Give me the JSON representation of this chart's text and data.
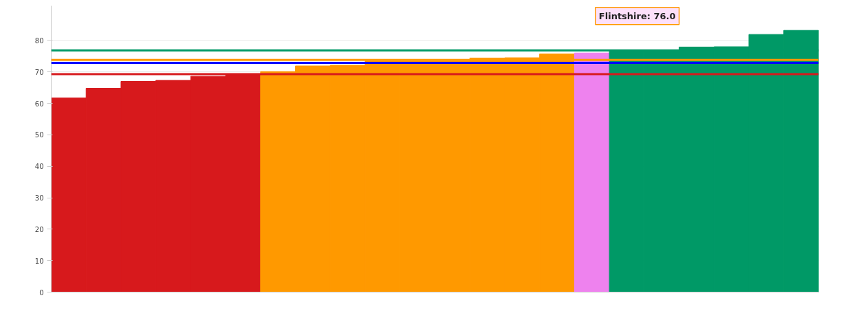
{
  "chart_data": {
    "type": "bar",
    "categories": [
      null,
      null,
      null,
      null,
      null,
      null,
      null,
      null,
      null,
      null,
      null,
      null,
      null,
      null,
      null,
      null,
      null,
      null,
      null,
      null,
      null,
      null
    ],
    "values": [
      61.7,
      64.8,
      67.0,
      67.3,
      68.6,
      69.4,
      70.1,
      71.9,
      72.1,
      73.5,
      73.5,
      73.5,
      74.4,
      74.5,
      75.7,
      76.0,
      76.9,
      76.9,
      77.9,
      78.0,
      81.9,
      83.2
    ],
    "colors": [
      "#d7191c",
      "#d7191c",
      "#d7191c",
      "#d7191c",
      "#d7191c",
      "#d7191c",
      "#ff9900",
      "#ff9900",
      "#ff9900",
      "#ff9900",
      "#ff9900",
      "#ff9900",
      "#ff9900",
      "#ff9900",
      "#ff9900",
      "#ee82ee",
      "#009966",
      "#009966",
      "#009966",
      "#009966",
      "#009966",
      "#009966"
    ],
    "ylim": [
      0,
      91
    ],
    "yticks": [
      0,
      10,
      20,
      30,
      40,
      50,
      60,
      70,
      80
    ],
    "grid": "y",
    "ref_lines": [
      {
        "axis": "y",
        "value": 76.8,
        "color": "#009966"
      },
      {
        "axis": "y",
        "value": 73.8,
        "color": "#ff9900"
      },
      {
        "axis": "y",
        "value": 72.9,
        "color": "#0000ff"
      },
      {
        "axis": "y",
        "value": 69.3,
        "color": "#d7191c"
      }
    ],
    "annotations": [
      "Flintshire: 76.0"
    ]
  }
}
